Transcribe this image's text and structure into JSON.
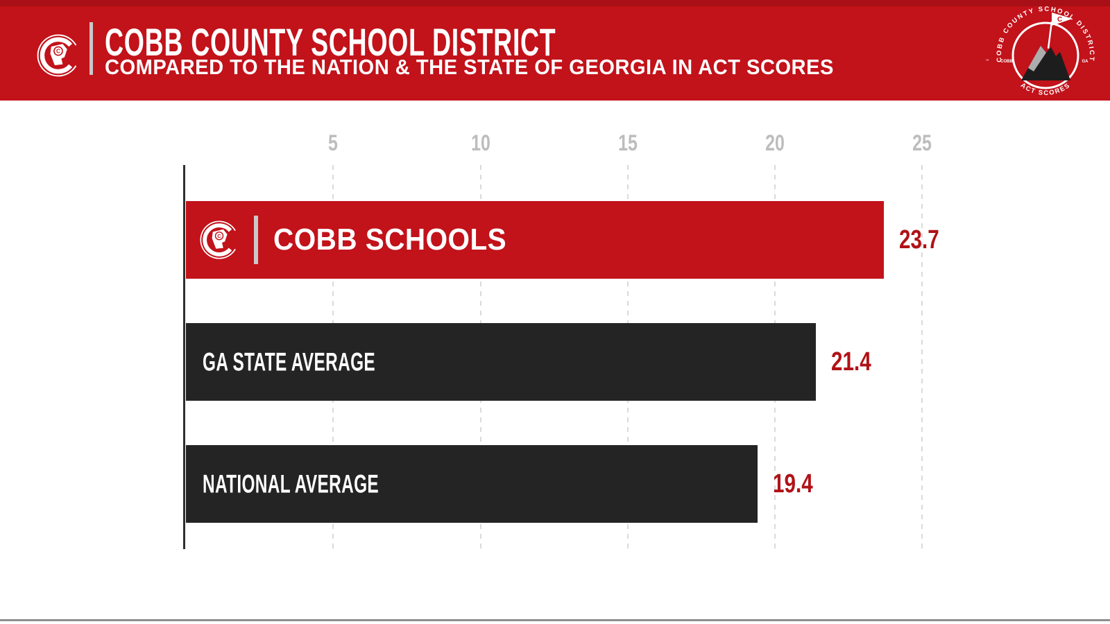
{
  "header": {
    "title": "COBB COUNTY SCHOOL DISTRICT",
    "subtitle": "COMPARED TO THE NATION & THE STATE OF GEORGIA IN ACT SCORES"
  },
  "logo": {
    "letter": "C"
  },
  "badge": {
    "top_arc": "COBB COUNTY SCHOOL DISTRICT",
    "bottom_arc": "ACT SCORES",
    "left_label": "COBB",
    "right_label": "GA",
    "trademark": "™",
    "flag_letter": "C"
  },
  "chart_data": {
    "type": "bar",
    "orientation": "horizontal",
    "title": "Cobb County School District compared to the nation & the state of Georgia in ACT scores",
    "categories": [
      "COBB SCHOOLS",
      "GA STATE AVERAGE",
      "NATIONAL AVERAGE"
    ],
    "values": [
      23.7,
      21.4,
      19.4
    ],
    "value_labels": [
      "23.7",
      "21.4",
      "19.4"
    ],
    "x_ticks": [
      "5",
      "10",
      "15",
      "20",
      "25"
    ],
    "xlim": [
      0,
      26.5
    ],
    "grid": "vertical-dashed",
    "legend": "none",
    "bar_colors": [
      "#C2121A",
      "#242424",
      "#242424"
    ],
    "value_label_color": "#B01218"
  },
  "colors": {
    "header_background": "#C2121A",
    "accent_red": "#C2121A",
    "dark_bar": "#242424",
    "grid_line": "#DADADA",
    "tick_label": "#BDBDBD",
    "axis_line": "#2E2E2E",
    "bottom_rule": "#8E8E8E"
  }
}
